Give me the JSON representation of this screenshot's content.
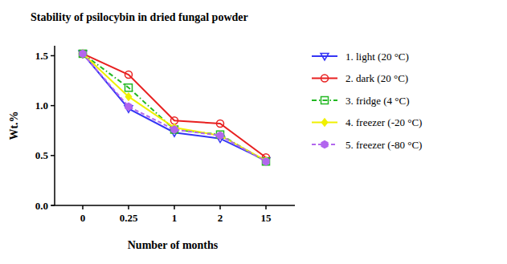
{
  "chart_data": {
    "type": "line",
    "title": "Stability of psilocybin in dried fungal powder",
    "x_label": "Number of months",
    "y_label": "Wt.%",
    "categories": [
      "0",
      "0.25",
      "1",
      "2",
      "15"
    ],
    "ylim": [
      0,
      1.6
    ],
    "yticks": [
      {
        "value": 0,
        "label": "0.0"
      },
      {
        "value": 0.5,
        "label": "0.5"
      },
      {
        "value": 1,
        "label": "1.0"
      },
      {
        "value": 1.5,
        "label": "1.5"
      }
    ],
    "grid": false,
    "legend": "right",
    "series": [
      {
        "name": "1. light (20 °C)",
        "color": "#3535f5",
        "marker": "triangle-down",
        "line_style": "solid",
        "values": [
          1.52,
          0.97,
          0.73,
          0.67,
          0.45
        ]
      },
      {
        "name": "2. dark (20 °C)",
        "color": "#e82020",
        "marker": "circle",
        "line_style": "solid",
        "values": [
          1.52,
          1.31,
          0.85,
          0.82,
          0.48
        ]
      },
      {
        "name": "3. fridge (4 °C)",
        "color": "#22b822",
        "marker": "square",
        "line_style": "dashdot",
        "values": [
          1.52,
          1.18,
          0.76,
          0.71,
          0.44
        ]
      },
      {
        "name": "4. freezer (-20 °C)",
        "color": "#f0f000",
        "marker": "diamond",
        "line_style": "solid",
        "values": [
          1.52,
          1.09,
          0.78,
          0.7,
          0.45
        ]
      },
      {
        "name": "5. freezer (-80 °C)",
        "color": "#b266ee",
        "marker": "hexagon",
        "line_style": "dashed",
        "values": [
          1.52,
          0.99,
          0.76,
          0.7,
          0.44
        ]
      }
    ]
  }
}
